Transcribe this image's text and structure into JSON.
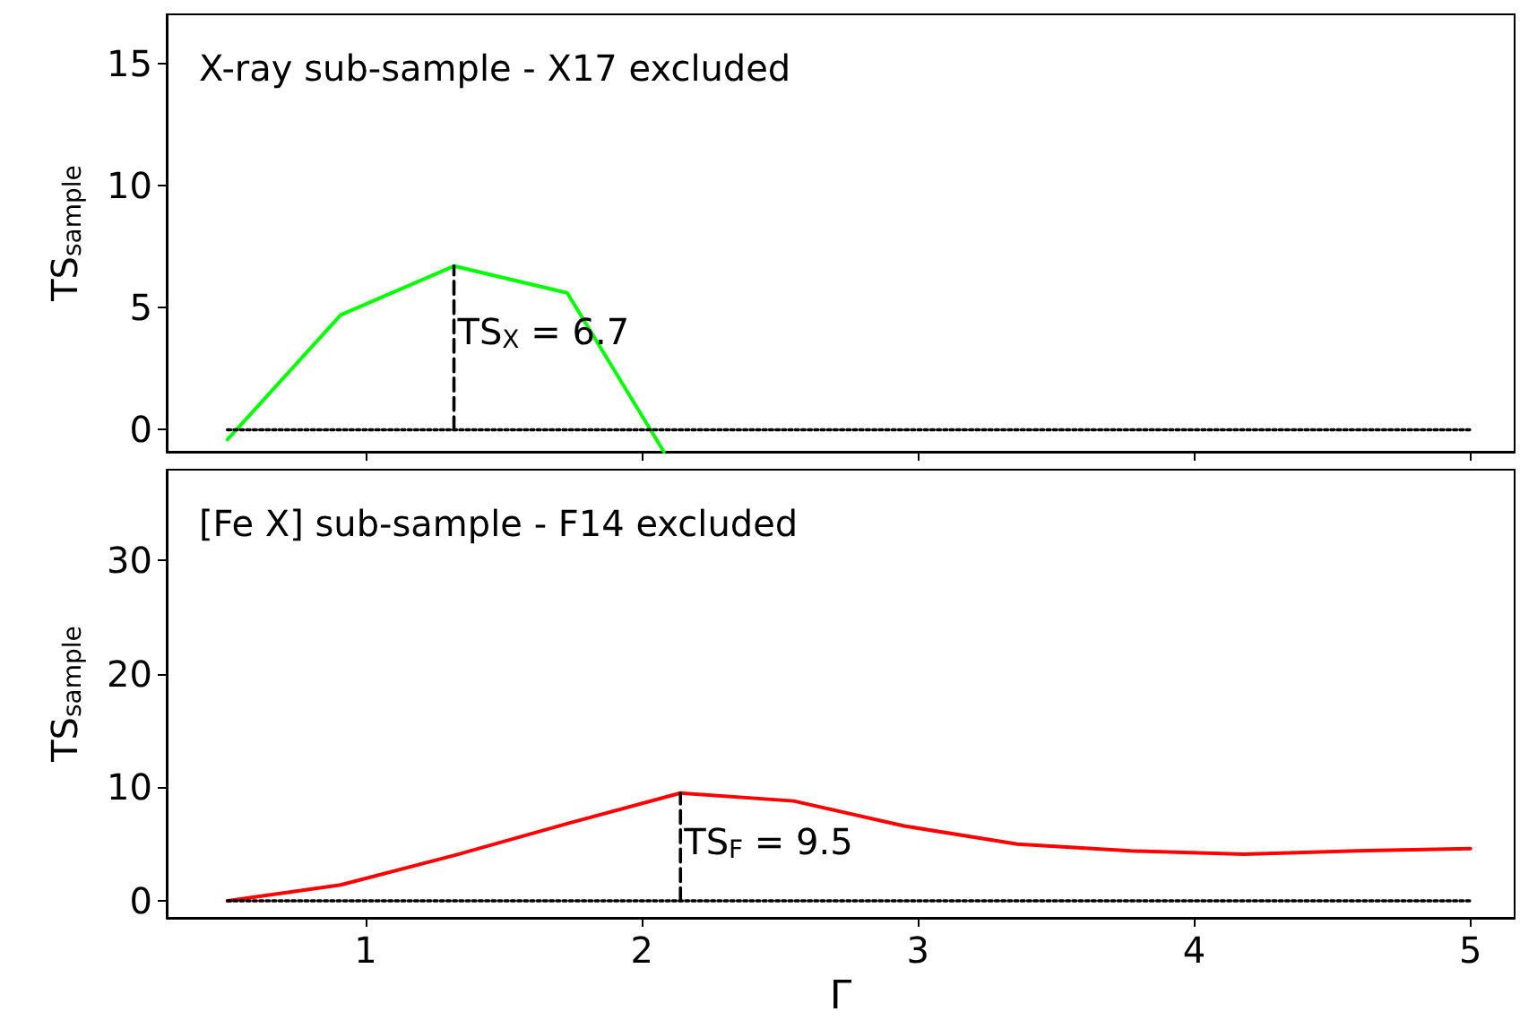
{
  "chart_data": [
    {
      "type": "line",
      "ylabel": "TS$_{sample}$",
      "xlim": [
        0.28,
        5.16
      ],
      "xticks": [
        1,
        2,
        3,
        4,
        5
      ],
      "ylim": [
        -0.9,
        17
      ],
      "yticks": [
        0,
        5,
        10,
        15
      ],
      "tick_labels": "y",
      "grid": false,
      "marker": "none",
      "annotations": [
        "X-ray sub-sample - X17 excluded",
        {
          "text": "TS$_{X}$ = 6.7",
          "x": 1.32,
          "y": 4.0
        }
      ],
      "series": [
        {
          "color": "#00ff00",
          "line_style": "solid",
          "x": [
            0.5,
            0.91,
            1.32,
            1.73,
            2.08
          ],
          "values": [
            -0.4,
            4.7,
            6.7,
            5.6,
            -0.9
          ]
        },
        {
          "color": "#000000",
          "line_style": "dotted",
          "x": [
            0.5,
            5.0
          ],
          "values": [
            0,
            0
          ]
        },
        {
          "color": "#000000",
          "line_style": "dashed",
          "x": [
            1.32,
            1.32
          ],
          "values": [
            0,
            6.7
          ]
        }
      ]
    },
    {
      "type": "line",
      "xlabel": "Γ",
      "ylabel": "TS$_{sample}$",
      "xlim": [
        0.28,
        5.16
      ],
      "xticks": [
        1,
        2,
        3,
        4,
        5
      ],
      "ylim": [
        -1.5,
        38
      ],
      "yticks": [
        0,
        10,
        20,
        30
      ],
      "grid": false,
      "marker": "none",
      "annotations": [
        "[Fe X] sub-sample - F14 excluded",
        {
          "text": "TS$_{F}$ = 9.5",
          "x": 2.14,
          "y": 5.2
        }
      ],
      "series": [
        {
          "color": "#ff0000",
          "line_style": "solid",
          "x": [
            0.5,
            0.91,
            1.32,
            1.73,
            2.14,
            2.55,
            2.95,
            3.36,
            3.77,
            4.18,
            4.59,
            5.0
          ],
          "values": [
            0,
            1.4,
            4.0,
            6.8,
            9.5,
            8.8,
            6.6,
            5.0,
            4.4,
            4.1,
            4.4,
            4.6
          ]
        },
        {
          "color": "#000000",
          "line_style": "dotted",
          "x": [
            0.5,
            5.0
          ],
          "values": [
            0,
            0
          ]
        },
        {
          "color": "#000000",
          "line_style": "dashed",
          "x": [
            2.14,
            2.14
          ],
          "values": [
            0,
            9.5
          ]
        }
      ]
    }
  ]
}
